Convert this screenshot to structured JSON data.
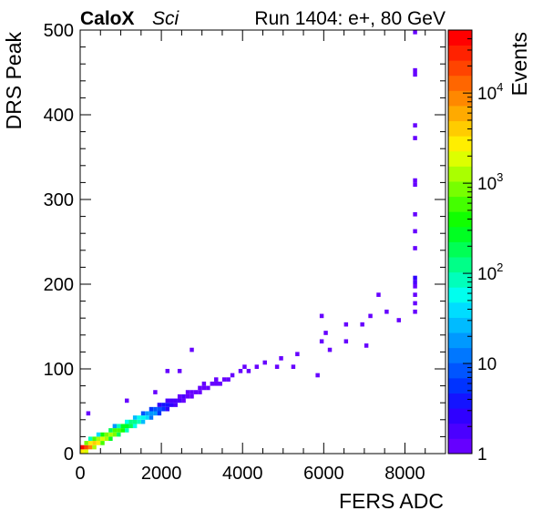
{
  "header": {
    "brand": "CaloX",
    "brand_sub": "Sci",
    "run_label": "Run 1404: e+, 80 GeV"
  },
  "chart_data": {
    "type": "heatmap",
    "title": "",
    "xlabel": "FERS ADC",
    "ylabel": "DRS Peak",
    "zlabel": "Events",
    "xlim": [
      0,
      9000
    ],
    "ylim": [
      0,
      500
    ],
    "zlim": [
      1,
      50000
    ],
    "zscale": "log",
    "x_ticks": [
      0,
      2000,
      4000,
      6000,
      8000
    ],
    "x_tick_labels": [
      "0",
      "2000",
      "4000",
      "6000",
      "8000"
    ],
    "y_ticks": [
      0,
      100,
      200,
      300,
      400,
      500
    ],
    "y_tick_labels": [
      "0",
      "100",
      "200",
      "300",
      "400",
      "500"
    ],
    "z_ticks": [
      1,
      10,
      100,
      1000,
      10000
    ],
    "z_tick_labels": [
      "1",
      "10",
      "10^2",
      "10^3",
      "10^4"
    ],
    "bin_width": [
      100,
      5
    ],
    "grid": false,
    "legend": "colorbar-right",
    "palette": [
      "#6600ff",
      "#4a00ff",
      "#2f00ff",
      "#1414ff",
      "#0033ff",
      "#0055ff",
      "#0077ff",
      "#0099ff",
      "#00bbff",
      "#00ddff",
      "#00ffee",
      "#00ffbb",
      "#00ff88",
      "#00ff55",
      "#00ff22",
      "#11ff00",
      "#44ff00",
      "#77ff00",
      "#aaff00",
      "#ddff00",
      "#ffee00",
      "#ffcc00",
      "#ffaa00",
      "#ff8800",
      "#ff6600",
      "#ff4400",
      "#ff2200",
      "#ff0000"
    ],
    "bins": [
      [
        0,
        0,
        3000
      ],
      [
        0,
        5,
        40000
      ],
      [
        100,
        0,
        2000
      ],
      [
        100,
        5,
        20000
      ],
      [
        100,
        10,
        900
      ],
      [
        200,
        5,
        8000
      ],
      [
        200,
        10,
        3000
      ],
      [
        200,
        15,
        80
      ],
      [
        300,
        5,
        1200
      ],
      [
        300,
        10,
        3500
      ],
      [
        300,
        15,
        600
      ],
      [
        400,
        10,
        2500
      ],
      [
        400,
        15,
        1200
      ],
      [
        400,
        20,
        40
      ],
      [
        500,
        10,
        600
      ],
      [
        500,
        15,
        2000
      ],
      [
        500,
        20,
        400
      ],
      [
        600,
        15,
        1300
      ],
      [
        600,
        20,
        900
      ],
      [
        700,
        15,
        300
      ],
      [
        700,
        20,
        1300
      ],
      [
        700,
        25,
        200
      ],
      [
        800,
        20,
        900
      ],
      [
        800,
        25,
        500
      ],
      [
        800,
        30,
        15
      ],
      [
        900,
        20,
        200
      ],
      [
        900,
        25,
        700
      ],
      [
        900,
        30,
        100
      ],
      [
        1000,
        25,
        350
      ],
      [
        1000,
        30,
        280
      ],
      [
        1100,
        25,
        80
      ],
      [
        1100,
        30,
        280
      ],
      [
        1100,
        35,
        60
      ],
      [
        1200,
        30,
        160
      ],
      [
        1200,
        35,
        110
      ],
      [
        1300,
        30,
        70
      ],
      [
        1300,
        35,
        110
      ],
      [
        1300,
        40,
        30
      ],
      [
        1400,
        35,
        80
      ],
      [
        1400,
        40,
        50
      ],
      [
        1500,
        35,
        30
      ],
      [
        1500,
        40,
        55
      ],
      [
        1500,
        45,
        10
      ],
      [
        1600,
        40,
        35
      ],
      [
        1600,
        45,
        22
      ],
      [
        1700,
        40,
        12
      ],
      [
        1700,
        45,
        22
      ],
      [
        1700,
        50,
        6
      ],
      [
        1800,
        45,
        15
      ],
      [
        1800,
        50,
        8
      ],
      [
        1900,
        45,
        6
      ],
      [
        1900,
        50,
        10
      ],
      [
        1900,
        55,
        3
      ],
      [
        2000,
        50,
        6
      ],
      [
        2000,
        55,
        4
      ],
      [
        2100,
        50,
        3
      ],
      [
        2100,
        55,
        4
      ],
      [
        2100,
        60,
        2
      ],
      [
        2200,
        55,
        3
      ],
      [
        2200,
        60,
        2
      ],
      [
        2300,
        55,
        2
      ],
      [
        2300,
        60,
        2
      ],
      [
        2400,
        60,
        2
      ],
      [
        2400,
        65,
        1
      ],
      [
        2500,
        60,
        1
      ],
      [
        2500,
        65,
        2
      ],
      [
        2600,
        65,
        1
      ],
      [
        2600,
        70,
        1
      ],
      [
        2700,
        65,
        1
      ],
      [
        2700,
        70,
        1
      ],
      [
        2800,
        70,
        1
      ],
      [
        2900,
        70,
        1
      ],
      [
        2900,
        75,
        1
      ],
      [
        3000,
        75,
        1
      ],
      [
        3100,
        75,
        1
      ],
      [
        3200,
        80,
        1
      ],
      [
        3300,
        80,
        1
      ],
      [
        3400,
        80,
        1
      ],
      [
        3500,
        85,
        1
      ],
      [
        3600,
        85,
        1
      ],
      [
        3700,
        90,
        1
      ],
      [
        3900,
        95,
        1
      ],
      [
        4100,
        95,
        1
      ],
      [
        4300,
        100,
        1
      ],
      [
        4500,
        105,
        1
      ],
      [
        4900,
        110,
        1
      ],
      [
        5300,
        115,
        1
      ],
      [
        5900,
        130,
        1
      ],
      [
        6500,
        150,
        1
      ],
      [
        7100,
        160,
        1
      ],
      [
        7500,
        165,
        1
      ],
      [
        8200,
        165,
        1
      ],
      [
        8200,
        175,
        1
      ],
      [
        8200,
        185,
        1
      ],
      [
        8200,
        195,
        1
      ],
      [
        8200,
        200,
        2
      ],
      [
        8200,
        205,
        3
      ],
      [
        8200,
        240,
        1
      ],
      [
        8200,
        260,
        1
      ],
      [
        8200,
        280,
        1
      ],
      [
        8200,
        315,
        1
      ],
      [
        8200,
        320,
        1
      ],
      [
        8200,
        370,
        1
      ],
      [
        8200,
        385,
        1
      ],
      [
        8200,
        445,
        1
      ],
      [
        8200,
        450,
        1
      ],
      [
        8200,
        495,
        1
      ],
      [
        150,
        45,
        1
      ],
      [
        1100,
        60,
        1
      ],
      [
        1800,
        70,
        1
      ],
      [
        2100,
        95,
        1
      ],
      [
        2400,
        95,
        1
      ],
      [
        2700,
        120,
        1
      ],
      [
        3000,
        80,
        1
      ],
      [
        3300,
        85,
        1
      ],
      [
        4000,
        100,
        1
      ],
      [
        4800,
        100,
        1
      ],
      [
        5200,
        100,
        1
      ],
      [
        5800,
        90,
        1
      ],
      [
        5900,
        160,
        1
      ],
      [
        6000,
        140,
        1
      ],
      [
        6100,
        120,
        1
      ],
      [
        6500,
        130,
        1
      ],
      [
        6900,
        150,
        1
      ],
      [
        7000,
        125,
        1
      ],
      [
        7300,
        185,
        1
      ],
      [
        7800,
        155,
        1
      ]
    ]
  }
}
